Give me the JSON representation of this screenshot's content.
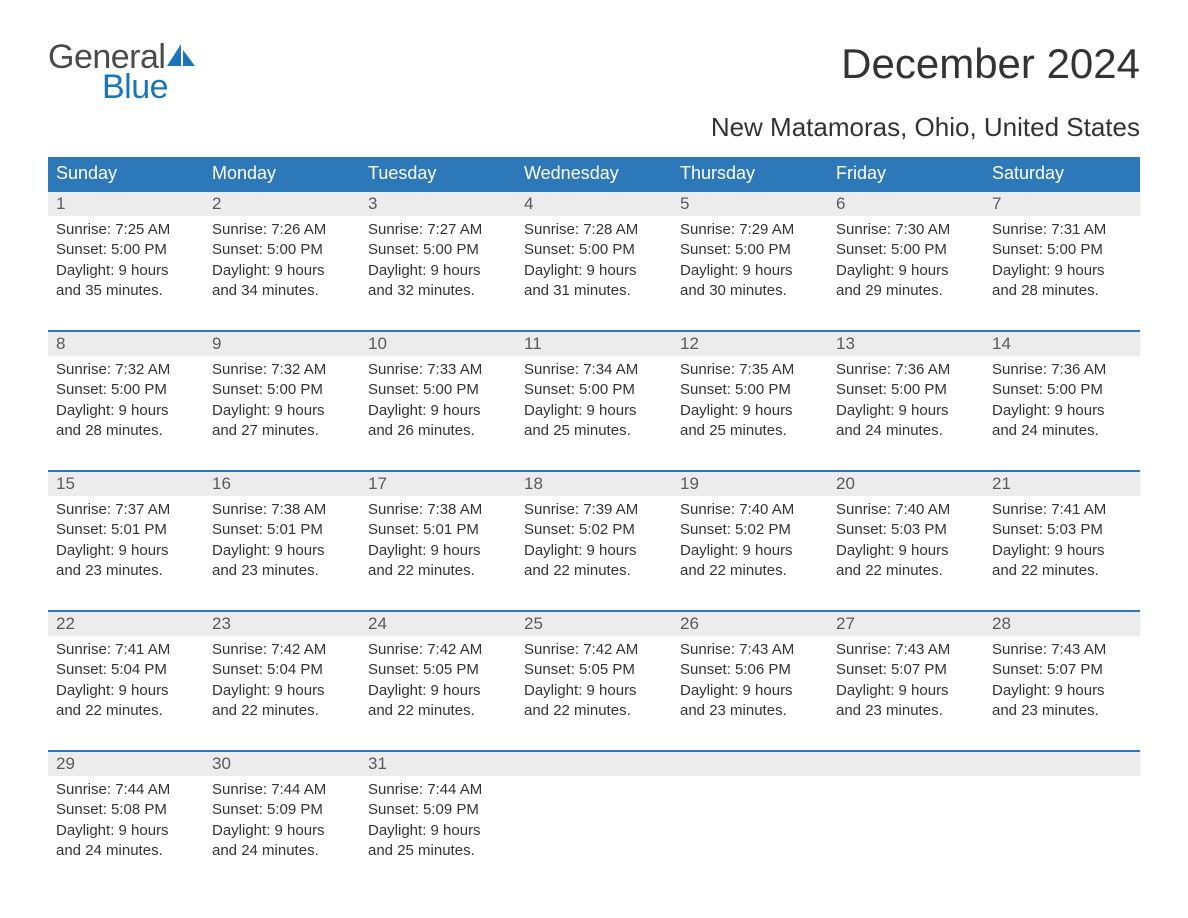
{
  "logo": {
    "word1": "General",
    "word2": "Blue",
    "sail_color": "#1976bc",
    "text_gray": "#4a4a4a"
  },
  "title": "December 2024",
  "location": "New Matamoras, Ohio, United States",
  "colors": {
    "header_bg": "#2d78b8",
    "daynum_bg": "#ececec",
    "week_border": "#2d78b8",
    "body_text": "#333333",
    "daynum_text": "#5a5a5a"
  },
  "day_names": [
    "Sunday",
    "Monday",
    "Tuesday",
    "Wednesday",
    "Thursday",
    "Friday",
    "Saturday"
  ],
  "weeks": [
    [
      {
        "n": "1",
        "sr": "7:25 AM",
        "ss": "5:00 PM",
        "dl": "9 hours and 35 minutes."
      },
      {
        "n": "2",
        "sr": "7:26 AM",
        "ss": "5:00 PM",
        "dl": "9 hours and 34 minutes."
      },
      {
        "n": "3",
        "sr": "7:27 AM",
        "ss": "5:00 PM",
        "dl": "9 hours and 32 minutes."
      },
      {
        "n": "4",
        "sr": "7:28 AM",
        "ss": "5:00 PM",
        "dl": "9 hours and 31 minutes."
      },
      {
        "n": "5",
        "sr": "7:29 AM",
        "ss": "5:00 PM",
        "dl": "9 hours and 30 minutes."
      },
      {
        "n": "6",
        "sr": "7:30 AM",
        "ss": "5:00 PM",
        "dl": "9 hours and 29 minutes."
      },
      {
        "n": "7",
        "sr": "7:31 AM",
        "ss": "5:00 PM",
        "dl": "9 hours and 28 minutes."
      }
    ],
    [
      {
        "n": "8",
        "sr": "7:32 AM",
        "ss": "5:00 PM",
        "dl": "9 hours and 28 minutes."
      },
      {
        "n": "9",
        "sr": "7:32 AM",
        "ss": "5:00 PM",
        "dl": "9 hours and 27 minutes."
      },
      {
        "n": "10",
        "sr": "7:33 AM",
        "ss": "5:00 PM",
        "dl": "9 hours and 26 minutes."
      },
      {
        "n": "11",
        "sr": "7:34 AM",
        "ss": "5:00 PM",
        "dl": "9 hours and 25 minutes."
      },
      {
        "n": "12",
        "sr": "7:35 AM",
        "ss": "5:00 PM",
        "dl": "9 hours and 25 minutes."
      },
      {
        "n": "13",
        "sr": "7:36 AM",
        "ss": "5:00 PM",
        "dl": "9 hours and 24 minutes."
      },
      {
        "n": "14",
        "sr": "7:36 AM",
        "ss": "5:00 PM",
        "dl": "9 hours and 24 minutes."
      }
    ],
    [
      {
        "n": "15",
        "sr": "7:37 AM",
        "ss": "5:01 PM",
        "dl": "9 hours and 23 minutes."
      },
      {
        "n": "16",
        "sr": "7:38 AM",
        "ss": "5:01 PM",
        "dl": "9 hours and 23 minutes."
      },
      {
        "n": "17",
        "sr": "7:38 AM",
        "ss": "5:01 PM",
        "dl": "9 hours and 22 minutes."
      },
      {
        "n": "18",
        "sr": "7:39 AM",
        "ss": "5:02 PM",
        "dl": "9 hours and 22 minutes."
      },
      {
        "n": "19",
        "sr": "7:40 AM",
        "ss": "5:02 PM",
        "dl": "9 hours and 22 minutes."
      },
      {
        "n": "20",
        "sr": "7:40 AM",
        "ss": "5:03 PM",
        "dl": "9 hours and 22 minutes."
      },
      {
        "n": "21",
        "sr": "7:41 AM",
        "ss": "5:03 PM",
        "dl": "9 hours and 22 minutes."
      }
    ],
    [
      {
        "n": "22",
        "sr": "7:41 AM",
        "ss": "5:04 PM",
        "dl": "9 hours and 22 minutes."
      },
      {
        "n": "23",
        "sr": "7:42 AM",
        "ss": "5:04 PM",
        "dl": "9 hours and 22 minutes."
      },
      {
        "n": "24",
        "sr": "7:42 AM",
        "ss": "5:05 PM",
        "dl": "9 hours and 22 minutes."
      },
      {
        "n": "25",
        "sr": "7:42 AM",
        "ss": "5:05 PM",
        "dl": "9 hours and 22 minutes."
      },
      {
        "n": "26",
        "sr": "7:43 AM",
        "ss": "5:06 PM",
        "dl": "9 hours and 23 minutes."
      },
      {
        "n": "27",
        "sr": "7:43 AM",
        "ss": "5:07 PM",
        "dl": "9 hours and 23 minutes."
      },
      {
        "n": "28",
        "sr": "7:43 AM",
        "ss": "5:07 PM",
        "dl": "9 hours and 23 minutes."
      }
    ],
    [
      {
        "n": "29",
        "sr": "7:44 AM",
        "ss": "5:08 PM",
        "dl": "9 hours and 24 minutes."
      },
      {
        "n": "30",
        "sr": "7:44 AM",
        "ss": "5:09 PM",
        "dl": "9 hours and 24 minutes."
      },
      {
        "n": "31",
        "sr": "7:44 AM",
        "ss": "5:09 PM",
        "dl": "9 hours and 25 minutes."
      },
      null,
      null,
      null,
      null
    ]
  ],
  "labels": {
    "sunrise": "Sunrise:",
    "sunset": "Sunset:",
    "daylight": "Daylight:"
  }
}
